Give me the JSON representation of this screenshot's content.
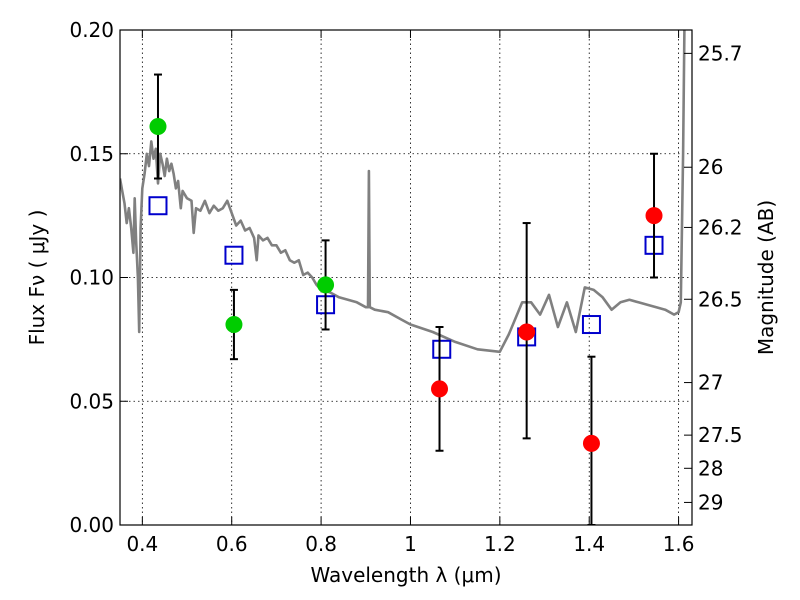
{
  "chart_data": {
    "type": "scatter",
    "title": "",
    "xlabel": "Wavelength  λ (μm)",
    "ylabel": "Flux  Fν  ( μJy )",
    "y2label": "Magnitude (AB)",
    "xlim": [
      0.35,
      1.63
    ],
    "ylim": [
      0.0,
      0.2
    ],
    "grid": true,
    "x_ticks": [
      {
        "v": 0.4,
        "label": "0.4"
      },
      {
        "v": 0.6,
        "label": "0.6"
      },
      {
        "v": 0.8,
        "label": "0.8"
      },
      {
        "v": 1.0,
        "label": "1"
      },
      {
        "v": 1.2,
        "label": "1.2"
      },
      {
        "v": 1.4,
        "label": "1.4"
      },
      {
        "v": 1.6,
        "label": "1.6"
      }
    ],
    "y_ticks": [
      {
        "v": 0.0,
        "label": "0.00"
      },
      {
        "v": 0.05,
        "label": "0.05"
      },
      {
        "v": 0.1,
        "label": "0.10"
      },
      {
        "v": 0.15,
        "label": "0.15"
      },
      {
        "v": 0.2,
        "label": "0.20"
      }
    ],
    "magnitude_ticks": [
      {
        "mag": 25.7,
        "label": "25.7"
      },
      {
        "mag": 26,
        "label": "26"
      },
      {
        "mag": 26.2,
        "label": "26.2"
      },
      {
        "mag": 26.5,
        "label": "26.5"
      },
      {
        "mag": 27,
        "label": "27"
      },
      {
        "mag": 27.5,
        "label": "27.5"
      },
      {
        "mag": 28,
        "label": "28"
      },
      {
        "mag": 29,
        "label": "29"
      }
    ],
    "magnitude_zero_point_ujy": 3631000000,
    "series": [
      {
        "kind": "spectrum",
        "color": "#808080",
        "points": [
          [
            0.35,
            0.14
          ],
          [
            0.355,
            0.135
          ],
          [
            0.36,
            0.13
          ],
          [
            0.365,
            0.122
          ],
          [
            0.37,
            0.128
          ],
          [
            0.375,
            0.12
          ],
          [
            0.38,
            0.11
          ],
          [
            0.383,
            0.132
          ],
          [
            0.386,
            0.115
          ],
          [
            0.39,
            0.1
          ],
          [
            0.393,
            0.078
          ],
          [
            0.396,
            0.12
          ],
          [
            0.4,
            0.136
          ],
          [
            0.405,
            0.142
          ],
          [
            0.41,
            0.15
          ],
          [
            0.415,
            0.145
          ],
          [
            0.42,
            0.155
          ],
          [
            0.425,
            0.148
          ],
          [
            0.43,
            0.152
          ],
          [
            0.435,
            0.138
          ],
          [
            0.44,
            0.15
          ],
          [
            0.445,
            0.146
          ],
          [
            0.45,
            0.141
          ],
          [
            0.455,
            0.148
          ],
          [
            0.46,
            0.143
          ],
          [
            0.465,
            0.146
          ],
          [
            0.47,
            0.142
          ],
          [
            0.475,
            0.136
          ],
          [
            0.48,
            0.139
          ],
          [
            0.486,
            0.128
          ],
          [
            0.49,
            0.135
          ],
          [
            0.5,
            0.132
          ],
          [
            0.51,
            0.131
          ],
          [
            0.515,
            0.118
          ],
          [
            0.52,
            0.128
          ],
          [
            0.53,
            0.127
          ],
          [
            0.54,
            0.131
          ],
          [
            0.55,
            0.126
          ],
          [
            0.56,
            0.129
          ],
          [
            0.57,
            0.127
          ],
          [
            0.58,
            0.128
          ],
          [
            0.59,
            0.131
          ],
          [
            0.6,
            0.126
          ],
          [
            0.61,
            0.121
          ],
          [
            0.62,
            0.123
          ],
          [
            0.63,
            0.119
          ],
          [
            0.64,
            0.12
          ],
          [
            0.65,
            0.116
          ],
          [
            0.656,
            0.107
          ],
          [
            0.66,
            0.117
          ],
          [
            0.67,
            0.115
          ],
          [
            0.68,
            0.116
          ],
          [
            0.69,
            0.113
          ],
          [
            0.7,
            0.113
          ],
          [
            0.71,
            0.11
          ],
          [
            0.72,
            0.111
          ],
          [
            0.73,
            0.107
          ],
          [
            0.74,
            0.106
          ],
          [
            0.75,
            0.107
          ],
          [
            0.76,
            0.101
          ],
          [
            0.77,
            0.102
          ],
          [
            0.78,
            0.1
          ],
          [
            0.79,
            0.097
          ],
          [
            0.8,
            0.095
          ],
          [
            0.82,
            0.094
          ],
          [
            0.84,
            0.092
          ],
          [
            0.86,
            0.091
          ],
          [
            0.88,
            0.09
          ],
          [
            0.9,
            0.088
          ],
          [
            0.905,
            0.088
          ],
          [
            0.907,
            0.143
          ],
          [
            0.909,
            0.088
          ],
          [
            0.92,
            0.087
          ],
          [
            0.95,
            0.086
          ],
          [
            0.98,
            0.083
          ],
          [
            1.0,
            0.081
          ],
          [
            1.05,
            0.078
          ],
          [
            1.1,
            0.074
          ],
          [
            1.15,
            0.071
          ],
          [
            1.2,
            0.07
          ],
          [
            1.22,
            0.077
          ],
          [
            1.25,
            0.09
          ],
          [
            1.27,
            0.09
          ],
          [
            1.29,
            0.085
          ],
          [
            1.31,
            0.093
          ],
          [
            1.33,
            0.08
          ],
          [
            1.35,
            0.09
          ],
          [
            1.37,
            0.078
          ],
          [
            1.39,
            0.096
          ],
          [
            1.41,
            0.095
          ],
          [
            1.43,
            0.092
          ],
          [
            1.45,
            0.087
          ],
          [
            1.47,
            0.09
          ],
          [
            1.49,
            0.091
          ],
          [
            1.51,
            0.09
          ],
          [
            1.53,
            0.089
          ],
          [
            1.55,
            0.088
          ],
          [
            1.57,
            0.087
          ],
          [
            1.59,
            0.085
          ],
          [
            1.6,
            0.086
          ],
          [
            1.605,
            0.09
          ],
          [
            1.61,
            0.15
          ],
          [
            1.613,
            0.2
          ]
        ]
      },
      {
        "kind": "model-photometry",
        "marker": "open-square",
        "color": "#0000cc",
        "points": [
          [
            0.435,
            0.129
          ],
          [
            0.605,
            0.109
          ],
          [
            0.81,
            0.089
          ],
          [
            1.07,
            0.071
          ],
          [
            1.26,
            0.076
          ],
          [
            1.405,
            0.081
          ],
          [
            1.545,
            0.113
          ]
        ]
      },
      {
        "kind": "observed-photometry",
        "marker": "filled-circle",
        "points": [
          {
            "x": 0.435,
            "y": 0.161,
            "err_low": 0.14,
            "err_high": 0.182,
            "color": "#00cc00"
          },
          {
            "x": 0.605,
            "y": 0.081,
            "err_low": 0.067,
            "err_high": 0.095,
            "color": "#00cc00"
          },
          {
            "x": 0.81,
            "y": 0.097,
            "err_low": 0.079,
            "err_high": 0.115,
            "color": "#00cc00"
          },
          {
            "x": 1.065,
            "y": 0.055,
            "err_low": 0.03,
            "err_high": 0.08,
            "color": "#ff0000"
          },
          {
            "x": 1.26,
            "y": 0.078,
            "err_low": 0.035,
            "err_high": 0.122,
            "color": "#ff0000"
          },
          {
            "x": 1.405,
            "y": 0.033,
            "err_low": 0.0,
            "err_high": 0.068,
            "color": "#ff0000"
          },
          {
            "x": 1.545,
            "y": 0.125,
            "err_low": 0.1,
            "err_high": 0.15,
            "color": "#ff0000"
          }
        ]
      }
    ]
  }
}
